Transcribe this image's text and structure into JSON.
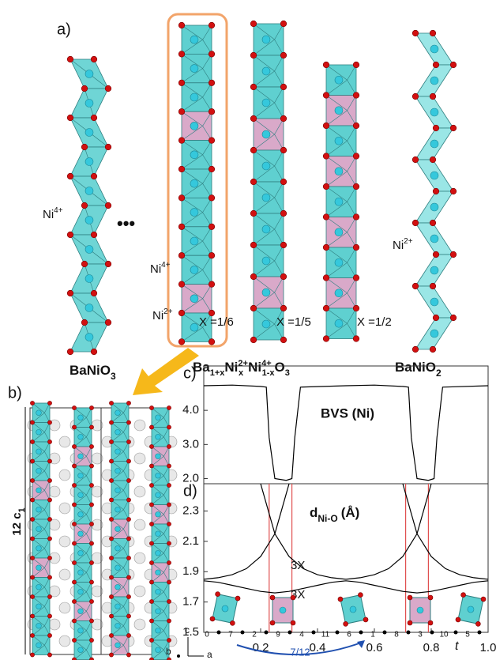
{
  "panel_a": {
    "label": "a)",
    "ni_left": [
      "Ni",
      "4+"
    ],
    "ellipsis": "•••",
    "ni_mid_top": [
      "Ni",
      "4+"
    ],
    "ni_mid_bottom": [
      "Ni",
      "2+"
    ],
    "ni_right": [
      "Ni",
      "2+"
    ],
    "x_labels": [
      "X =1/6",
      "X =1/5",
      "X =1/2"
    ],
    "compound_left": [
      "BaNiO",
      "3"
    ],
    "compound_mid": [
      "Ba",
      "1+x",
      "Ni",
      "2+",
      "x",
      "Ni",
      "4+",
      "1-x",
      "O",
      "3"
    ],
    "compound_right": [
      "BaNiO",
      "2"
    ]
  },
  "panel_b": {
    "label": "b)",
    "axis_label": [
      "12 c",
      "1"
    ],
    "axes": [
      "c",
      "b",
      "a"
    ]
  },
  "chart_data": [
    {
      "type": "line",
      "panel_label": "c)",
      "title": "BVS (Ni)",
      "x": [
        0,
        0.1,
        0.2,
        0.22,
        0.23,
        0.25,
        0.29,
        0.31,
        0.32,
        0.34,
        0.5,
        0.6,
        0.7,
        0.72,
        0.73,
        0.75,
        0.79,
        0.81,
        0.82,
        0.84,
        1.0
      ],
      "series": [
        {
          "color": "#000000",
          "values": [
            4.72,
            4.74,
            4.7,
            4.68,
            3.2,
            2.0,
            1.95,
            2.0,
            3.2,
            4.68,
            4.72,
            4.74,
            4.7,
            4.68,
            3.2,
            2.0,
            1.95,
            2.0,
            3.2,
            4.68,
            4.72
          ]
        }
      ],
      "xlim": [
        0,
        1
      ],
      "ylim": [
        1.85,
        5.3
      ],
      "yticks": [
        {
          "value": 2,
          "label": "2.0"
        },
        {
          "value": 3,
          "label": "3.0"
        },
        {
          "value": 4,
          "label": "4.0"
        }
      ]
    },
    {
      "type": "line",
      "panel_label": "d)",
      "title": "d",
      "title_sub": "Ni-O",
      "title_unit": "(Å)",
      "x": [
        0,
        0.05,
        0.1,
        0.15,
        0.2,
        0.25,
        0.3,
        0.35,
        0.4,
        0.45,
        0.5,
        0.55,
        0.6,
        0.65,
        0.7,
        0.75,
        0.8,
        0.85,
        0.9,
        0.95,
        1.0
      ],
      "series": [
        {
          "color": "#000000",
          "values": [
            1.85,
            1.86,
            1.88,
            1.92,
            2.0,
            2.15,
            2.48,
            null,
            null,
            null,
            1.85,
            1.86,
            1.88,
            1.92,
            2.0,
            2.15,
            2.48,
            null,
            null,
            null,
            null
          ]
        },
        {
          "color": "#000000",
          "values": [
            null,
            null,
            null,
            null,
            2.48,
            2.15,
            2.0,
            1.92,
            1.88,
            1.86,
            1.85,
            null,
            null,
            null,
            2.48,
            2.15,
            2.0,
            1.92,
            1.88,
            1.86,
            1.85
          ]
        },
        {
          "color": "#000000",
          "values": [
            1.84,
            1.83,
            1.81,
            1.79,
            1.77,
            1.76,
            1.77,
            1.79,
            1.81,
            1.83,
            1.84,
            1.83,
            1.81,
            1.79,
            1.77,
            1.76,
            1.77,
            1.79,
            1.81,
            1.83,
            1.84
          ]
        }
      ],
      "xlim": [
        0,
        1
      ],
      "ylim": [
        1.5,
        2.48
      ],
      "xticks": [
        0.2,
        0.4,
        0.6,
        0.8,
        {
          "value": 1,
          "label": "1.0"
        }
      ],
      "yticks": [
        1.5,
        1.7,
        1.9,
        2.1,
        2.3
      ],
      "xlabel": "t",
      "annotations": [
        "3X",
        "3X"
      ],
      "boundaries": [
        0.23,
        0.31,
        0.71,
        0.79
      ],
      "boundary_color": "#e05050",
      "site_labels": [
        "0",
        "7",
        "2",
        "9",
        "4",
        "11",
        "6",
        "1",
        "8",
        "3",
        "10",
        "5"
      ],
      "shift_label": "7/12"
    }
  ]
}
